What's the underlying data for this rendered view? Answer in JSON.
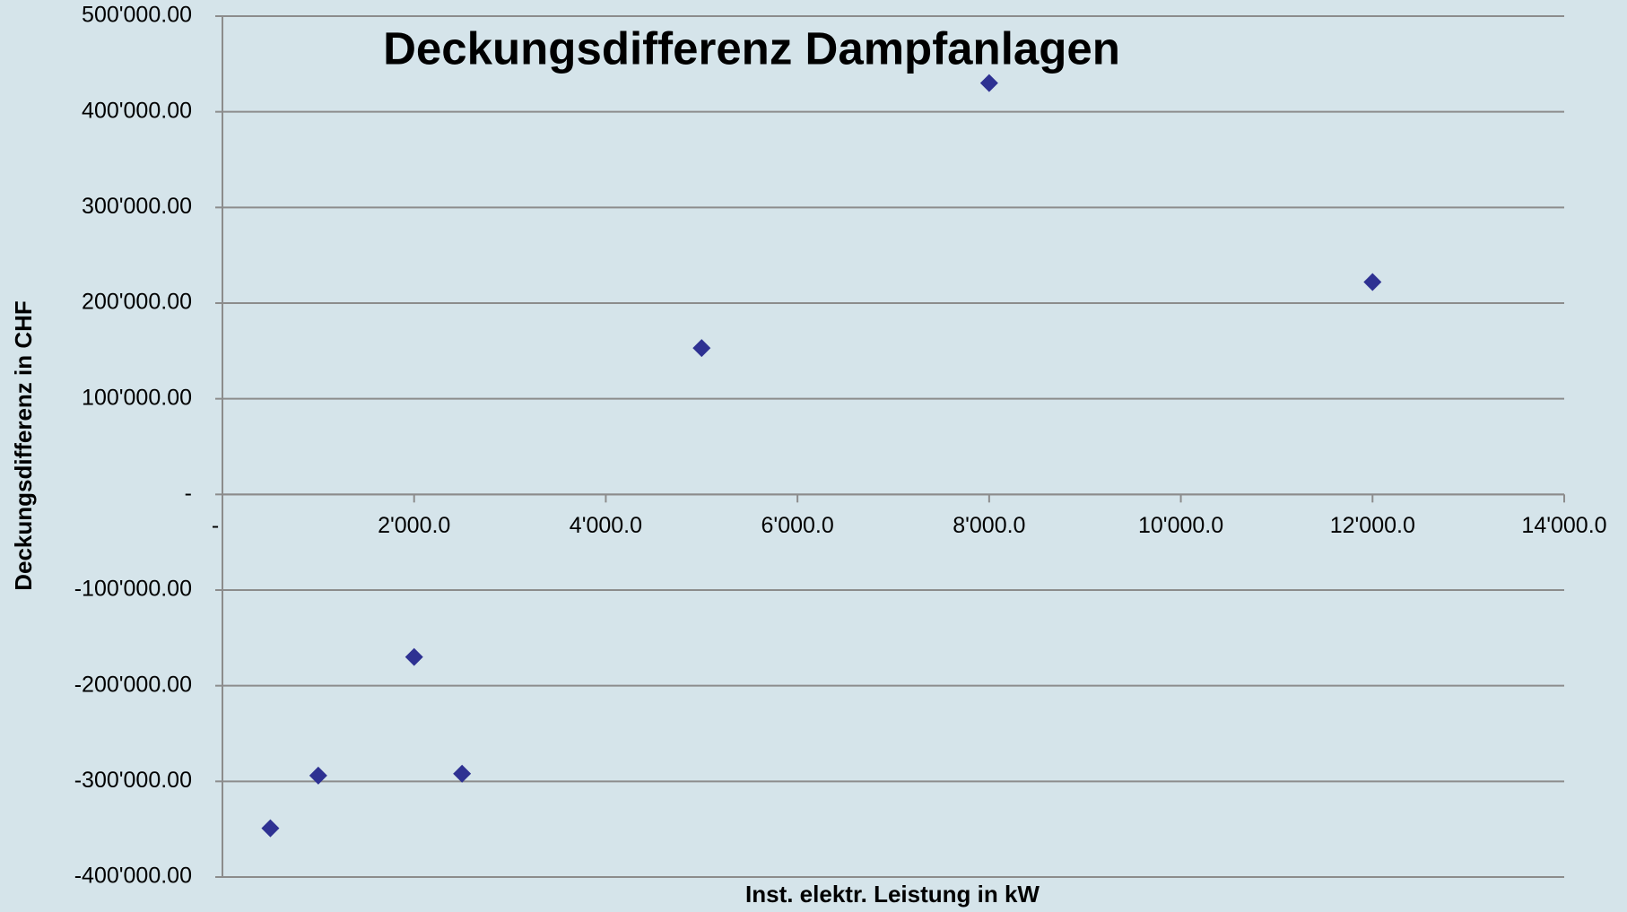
{
  "chart_data": {
    "type": "scatter",
    "title": "Deckungsdifferenz Dampfanlagen",
    "x_label": "Inst. elektr. Leistung in kW",
    "y_label": "Deckungsdifferenz in CHF",
    "series": [
      {
        "name": "Dampfanlagen",
        "color": "#2e3192",
        "x": [
          500,
          1000,
          2000,
          2500,
          5000,
          8000,
          12000
        ],
        "values": [
          -349000,
          -294000,
          -170000,
          -292000,
          153000,
          430000,
          222000
        ]
      }
    ],
    "xlim": [
      0,
      14000
    ],
    "xticks": [
      {
        "value": 0,
        "label": "-"
      },
      {
        "value": 2000,
        "label": "2'000.0"
      },
      {
        "value": 4000,
        "label": "4'000.0"
      },
      {
        "value": 6000,
        "label": "6'000.0"
      },
      {
        "value": 8000,
        "label": "8'000.0"
      },
      {
        "value": 10000,
        "label": "10'000.0"
      },
      {
        "value": 12000,
        "label": "12'000.0"
      },
      {
        "value": 14000,
        "label": "14'000.0"
      }
    ],
    "ylim": [
      -400000,
      500000
    ],
    "yticks": [
      {
        "value": -400000,
        "label": "-400'000.00"
      },
      {
        "value": -300000,
        "label": "-300'000.00"
      },
      {
        "value": -200000,
        "label": "-200'000.00"
      },
      {
        "value": -100000,
        "label": "-100'000.00"
      },
      {
        "value": 0,
        "label": "-"
      },
      {
        "value": 100000,
        "label": "100'000.00"
      },
      {
        "value": 200000,
        "label": "200'000.00"
      },
      {
        "value": 300000,
        "label": "300'000.00"
      },
      {
        "value": 400000,
        "label": "400'000.00"
      },
      {
        "value": 500000,
        "label": "500'000.00"
      }
    ],
    "grid": true
  }
}
